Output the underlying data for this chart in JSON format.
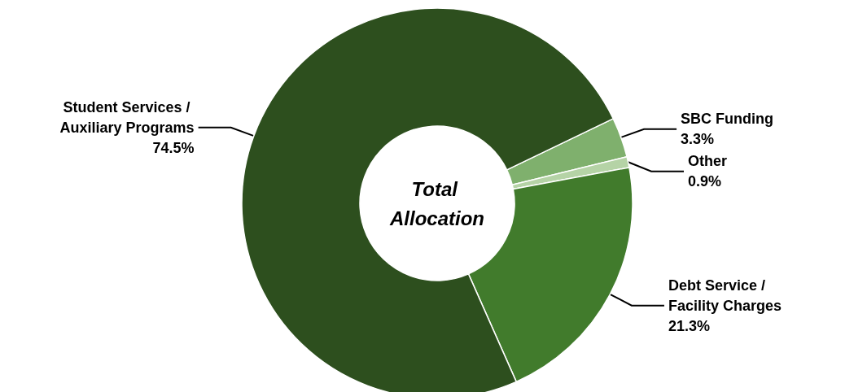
{
  "chart_data": {
    "type": "donut",
    "categories": [
      "SBC Funding",
      "Other",
      "Debt Service / Facility Charges",
      "Student Services / Auxiliary Programs"
    ],
    "values": [
      3.3,
      0.9,
      21.3,
      74.5
    ],
    "value_labels": [
      "3.3%",
      "0.9%",
      "21.3%",
      "74.5%"
    ],
    "colors": [
      "#7fb06d",
      "#b5d3a6",
      "#417b2c",
      "#2d4f1e"
    ],
    "annotations": [
      "Total Allocation"
    ],
    "legend": false
  }
}
